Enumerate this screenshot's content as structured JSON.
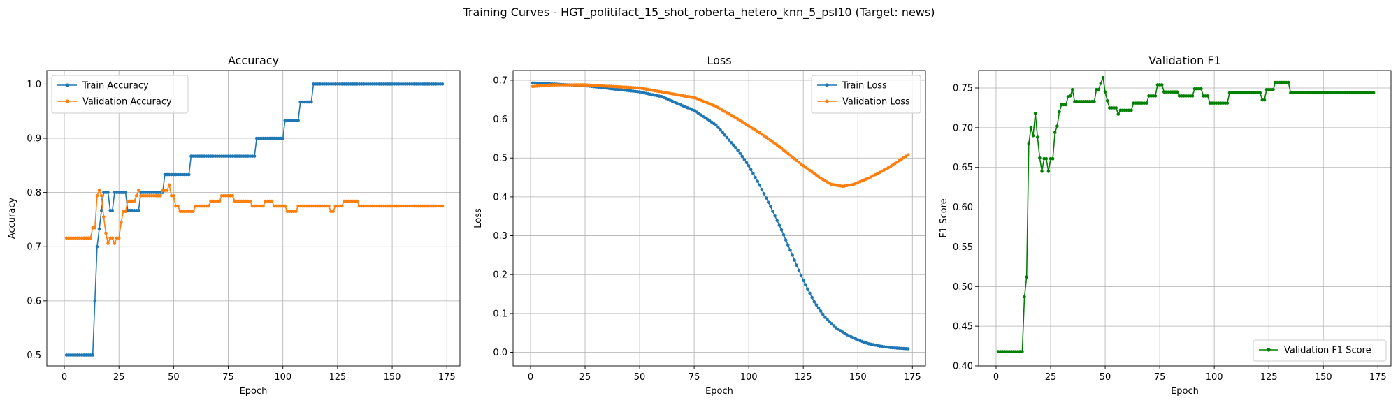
{
  "suptitle": "Training Curves - HGT_politifact_15_shot_roberta_hetero_knn_5_psl10 (Target: news)",
  "colors": {
    "train": "#1f77b4",
    "validation": "#ff7f0e",
    "f1": "#008000",
    "grid": "#b0b0b0"
  },
  "chart_data": [
    {
      "type": "line",
      "title": "Accuracy",
      "xlabel": "Epoch",
      "ylabel": "Accuracy",
      "xlim": [
        -8,
        181
      ],
      "ylim": [
        0.48,
        1.025
      ],
      "xticks": [
        0,
        25,
        50,
        75,
        100,
        125,
        150,
        175
      ],
      "yticks": [
        0.5,
        0.6,
        0.7,
        0.8,
        0.9,
        1.0
      ],
      "ytick_labels": [
        "0.5",
        "0.6",
        "0.7",
        "0.8",
        "0.9",
        "1.0"
      ],
      "legend_position": "upper-left",
      "grid": true,
      "series": [
        {
          "name": "Train Accuracy",
          "color": "#1f77b4",
          "segments": [
            [
              1,
              13,
              0.5
            ],
            [
              14,
              14,
              0.6
            ],
            [
              15,
              15,
              0.7
            ],
            [
              16,
              16,
              0.733
            ],
            [
              17,
              17,
              0.767
            ],
            [
              18,
              20,
              0.8
            ],
            [
              21,
              22,
              0.767
            ],
            [
              23,
              28,
              0.8
            ],
            [
              29,
              34,
              0.767
            ],
            [
              35,
              45,
              0.8
            ],
            [
              46,
              57,
              0.833
            ],
            [
              58,
              87,
              0.867
            ],
            [
              88,
              100,
              0.9
            ],
            [
              101,
              107,
              0.933
            ],
            [
              108,
              113,
              0.967
            ],
            [
              114,
              173,
              1.0
            ]
          ]
        },
        {
          "name": "Validation Accuracy",
          "color": "#ff7f0e",
          "segments": [
            [
              1,
              12,
              0.716
            ],
            [
              13,
              14,
              0.735
            ],
            [
              15,
              15,
              0.794
            ],
            [
              16,
              16,
              0.804
            ],
            [
              17,
              17,
              0.794
            ],
            [
              18,
              18,
              0.755
            ],
            [
              19,
              19,
              0.725
            ],
            [
              20,
              20,
              0.706
            ],
            [
              21,
              22,
              0.716
            ],
            [
              23,
              23,
              0.706
            ],
            [
              24,
              25,
              0.716
            ],
            [
              26,
              26,
              0.745
            ],
            [
              27,
              28,
              0.765
            ],
            [
              29,
              32,
              0.784
            ],
            [
              33,
              33,
              0.794
            ],
            [
              34,
              34,
              0.804
            ],
            [
              35,
              44,
              0.794
            ],
            [
              45,
              47,
              0.804
            ],
            [
              48,
              48,
              0.814
            ],
            [
              49,
              50,
              0.794
            ],
            [
              51,
              52,
              0.775
            ],
            [
              53,
              59,
              0.765
            ],
            [
              60,
              66,
              0.775
            ],
            [
              67,
              71,
              0.784
            ],
            [
              72,
              77,
              0.794
            ],
            [
              78,
              85,
              0.784
            ],
            [
              86,
              91,
              0.775
            ],
            [
              92,
              95,
              0.784
            ],
            [
              96,
              101,
              0.775
            ],
            [
              102,
              106,
              0.765
            ],
            [
              107,
              121,
              0.775
            ],
            [
              122,
              123,
              0.765
            ],
            [
              124,
              127,
              0.775
            ],
            [
              128,
              134,
              0.784
            ],
            [
              135,
              173,
              0.775
            ]
          ]
        }
      ]
    },
    {
      "type": "line",
      "title": "Loss",
      "xlabel": "Epoch",
      "ylabel": "Loss",
      "xlim": [
        -8,
        181
      ],
      "ylim": [
        -0.035,
        0.725
      ],
      "xticks": [
        0,
        25,
        50,
        75,
        100,
        125,
        150,
        175
      ],
      "yticks": [
        0.0,
        0.1,
        0.2,
        0.3,
        0.4,
        0.5,
        0.6,
        0.7
      ],
      "ytick_labels": [
        "0.0",
        "0.1",
        "0.2",
        "0.3",
        "0.4",
        "0.5",
        "0.6",
        "0.7"
      ],
      "legend_position": "upper-right",
      "grid": true,
      "series": [
        {
          "name": "Train Loss",
          "color": "#1f77b4",
          "keypoints": [
            [
              1,
              0.693
            ],
            [
              25,
              0.686
            ],
            [
              50,
              0.67
            ],
            [
              60,
              0.658
            ],
            [
              75,
              0.622
            ],
            [
              85,
              0.585
            ],
            [
              95,
              0.52
            ],
            [
              100,
              0.48
            ],
            [
              105,
              0.43
            ],
            [
              110,
              0.375
            ],
            [
              115,
              0.315
            ],
            [
              120,
              0.25
            ],
            [
              125,
              0.185
            ],
            [
              130,
              0.13
            ],
            [
              135,
              0.09
            ],
            [
              140,
              0.063
            ],
            [
              145,
              0.045
            ],
            [
              150,
              0.032
            ],
            [
              155,
              0.022
            ],
            [
              160,
              0.016
            ],
            [
              165,
              0.012
            ],
            [
              173,
              0.009
            ]
          ]
        },
        {
          "name": "Validation Loss",
          "color": "#ff7f0e",
          "keypoints": [
            [
              1,
              0.684
            ],
            [
              10,
              0.688
            ],
            [
              25,
              0.688
            ],
            [
              50,
              0.68
            ],
            [
              75,
              0.655
            ],
            [
              85,
              0.633
            ],
            [
              95,
              0.6
            ],
            [
              105,
              0.565
            ],
            [
              115,
              0.525
            ],
            [
              125,
              0.48
            ],
            [
              133,
              0.448
            ],
            [
              138,
              0.432
            ],
            [
              143,
              0.427
            ],
            [
              148,
              0.432
            ],
            [
              155,
              0.448
            ],
            [
              165,
              0.478
            ],
            [
              173,
              0.508
            ]
          ]
        }
      ]
    },
    {
      "type": "line",
      "title": "Validation F1",
      "xlabel": "Epoch",
      "ylabel": "F1 Score",
      "xlim": [
        -8,
        181
      ],
      "ylim": [
        0.4,
        0.772
      ],
      "xticks": [
        0,
        25,
        50,
        75,
        100,
        125,
        150,
        175
      ],
      "yticks": [
        0.4,
        0.45,
        0.5,
        0.55,
        0.6,
        0.65,
        0.7,
        0.75
      ],
      "ytick_labels": [
        "0.40",
        "0.45",
        "0.50",
        "0.55",
        "0.60",
        "0.65",
        "0.70",
        "0.75"
      ],
      "legend_position": "lower-right",
      "grid": true,
      "series": [
        {
          "name": "Validation F1 Score",
          "color": "#008000",
          "segments": [
            [
              1,
              12,
              0.418
            ],
            [
              13,
              13,
              0.487
            ],
            [
              14,
              14,
              0.512
            ],
            [
              15,
              15,
              0.68
            ],
            [
              16,
              16,
              0.7
            ],
            [
              17,
              17,
              0.69
            ],
            [
              18,
              18,
              0.718
            ],
            [
              19,
              19,
              0.688
            ],
            [
              20,
              20,
              0.662
            ],
            [
              21,
              21,
              0.645
            ],
            [
              22,
              23,
              0.661
            ],
            [
              24,
              24,
              0.645
            ],
            [
              25,
              26,
              0.661
            ],
            [
              27,
              27,
              0.694
            ],
            [
              28,
              28,
              0.702
            ],
            [
              29,
              29,
              0.72
            ],
            [
              30,
              32,
              0.729
            ],
            [
              33,
              33,
              0.739
            ],
            [
              34,
              34,
              0.74
            ],
            [
              35,
              35,
              0.748
            ],
            [
              36,
              45,
              0.733
            ],
            [
              46,
              47,
              0.748
            ],
            [
              48,
              48,
              0.756
            ],
            [
              49,
              49,
              0.763
            ],
            [
              50,
              50,
              0.745
            ],
            [
              51,
              51,
              0.734
            ],
            [
              52,
              55,
              0.725
            ],
            [
              56,
              56,
              0.717
            ],
            [
              57,
              62,
              0.722
            ],
            [
              63,
              69,
              0.731
            ],
            [
              70,
              73,
              0.74
            ],
            [
              74,
              76,
              0.754
            ],
            [
              77,
              83,
              0.745
            ],
            [
              84,
              90,
              0.74
            ],
            [
              91,
              94,
              0.749
            ],
            [
              95,
              97,
              0.74
            ],
            [
              98,
              106,
              0.731
            ],
            [
              107,
              121,
              0.744
            ],
            [
              122,
              123,
              0.735
            ],
            [
              124,
              127,
              0.748
            ],
            [
              128,
              134,
              0.757
            ],
            [
              135,
              173,
              0.744
            ]
          ]
        }
      ]
    }
  ]
}
